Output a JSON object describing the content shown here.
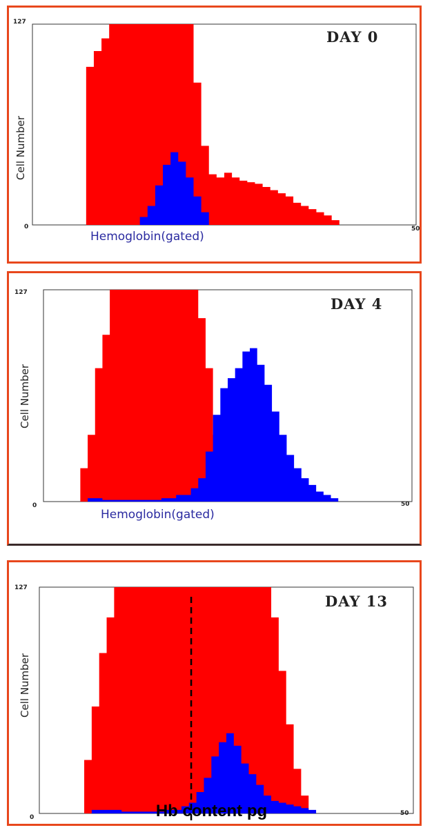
{
  "chart_data": [
    {
      "type": "histogram",
      "day_label": "DAY 0",
      "ylabel": "Cell Number",
      "xlabel": "Hemoglobin(gated)",
      "y_tick_labels": [
        "127",
        "0"
      ],
      "x_tick_labels": [
        "50"
      ],
      "xlim": [
        0,
        50
      ],
      "ylim": [
        0,
        127
      ],
      "series": [
        {
          "color": "#ff0000",
          "x": [
            6,
            7,
            8,
            9,
            10,
            11,
            12,
            13,
            14,
            15,
            16,
            17,
            18,
            19,
            20,
            21,
            22,
            23,
            24,
            25,
            26,
            27,
            28,
            29,
            30,
            31,
            32,
            33,
            34,
            35,
            36,
            37,
            38,
            39,
            40
          ],
          "values": [
            0,
            100,
            110,
            118,
            127,
            127,
            127,
            127,
            127,
            127,
            127,
            127,
            127,
            127,
            127,
            90,
            50,
            32,
            30,
            33,
            30,
            28,
            27,
            26,
            24,
            22,
            20,
            18,
            14,
            12,
            10,
            8,
            6,
            3,
            0
          ]
        },
        {
          "color": "#0000ff",
          "x": [
            13,
            14,
            15,
            16,
            17,
            18,
            19,
            20,
            21,
            22,
            23
          ],
          "values": [
            0,
            5,
            12,
            25,
            38,
            46,
            40,
            30,
            18,
            8,
            0
          ]
        }
      ]
    },
    {
      "type": "histogram",
      "day_label": "DAY 4",
      "ylabel": "Cell Number",
      "xlabel": "Hemoglobin(gated)",
      "y_tick_labels": [
        "127",
        "0"
      ],
      "x_tick_labels": [
        "50"
      ],
      "xlim": [
        0,
        50
      ],
      "ylim": [
        0,
        127
      ],
      "series": [
        {
          "color": "#ff0000",
          "x": [
            4,
            5,
            6,
            7,
            8,
            9,
            10,
            11,
            12,
            13,
            14,
            15,
            16,
            17,
            18,
            19,
            20,
            21,
            22,
            23,
            24
          ],
          "values": [
            0,
            20,
            40,
            80,
            100,
            127,
            127,
            127,
            127,
            127,
            127,
            127,
            127,
            127,
            127,
            127,
            127,
            110,
            80,
            40,
            0
          ]
        },
        {
          "color": "#0000ff",
          "x": [
            4,
            6,
            8,
            10,
            12,
            14,
            16,
            18,
            20,
            21,
            22,
            23,
            24,
            25,
            26,
            27,
            28,
            29,
            30,
            31,
            32,
            33,
            34,
            35,
            36,
            37,
            38,
            39,
            40
          ],
          "values": [
            0,
            2,
            1,
            1,
            1,
            1,
            2,
            4,
            8,
            14,
            30,
            52,
            68,
            74,
            80,
            90,
            92,
            82,
            70,
            54,
            40,
            28,
            20,
            14,
            10,
            6,
            4,
            2,
            0
          ]
        }
      ]
    },
    {
      "type": "histogram",
      "day_label": "DAY  13",
      "ylabel": "Cell Number",
      "xlabel": "",
      "y_tick_labels": [
        "127",
        "0"
      ],
      "x_tick_labels": [
        "50"
      ],
      "xlim": [
        0,
        50
      ],
      "ylim": [
        0,
        127
      ],
      "annotation": "dashed vertical line at x ≈ 20.3",
      "series": [
        {
          "color": "#ff0000",
          "x": [
            5,
            6,
            7,
            8,
            9,
            10,
            11,
            12,
            13,
            14,
            15,
            16,
            17,
            18,
            19,
            20,
            21,
            22,
            23,
            24,
            25,
            26,
            27,
            28,
            29,
            30,
            31,
            32,
            33,
            34,
            35,
            36
          ],
          "values": [
            0,
            30,
            60,
            90,
            110,
            127,
            127,
            127,
            127,
            127,
            127,
            127,
            127,
            127,
            127,
            127,
            127,
            127,
            127,
            127,
            127,
            127,
            127,
            127,
            127,
            127,
            110,
            80,
            50,
            25,
            10,
            0
          ]
        },
        {
          "color": "#0000ff",
          "x": [
            5,
            7,
            9,
            11,
            13,
            15,
            17,
            19,
            20,
            21,
            22,
            23,
            24,
            25,
            26,
            27,
            28,
            29,
            30,
            31,
            32,
            33,
            34,
            35,
            36,
            37
          ],
          "values": [
            0,
            2,
            2,
            1,
            1,
            1,
            2,
            4,
            6,
            12,
            20,
            32,
            40,
            45,
            38,
            28,
            22,
            16,
            10,
            7,
            6,
            5,
            4,
            3,
            2,
            0
          ]
        }
      ]
    }
  ],
  "footer": {
    "text": "Hb content pg"
  }
}
